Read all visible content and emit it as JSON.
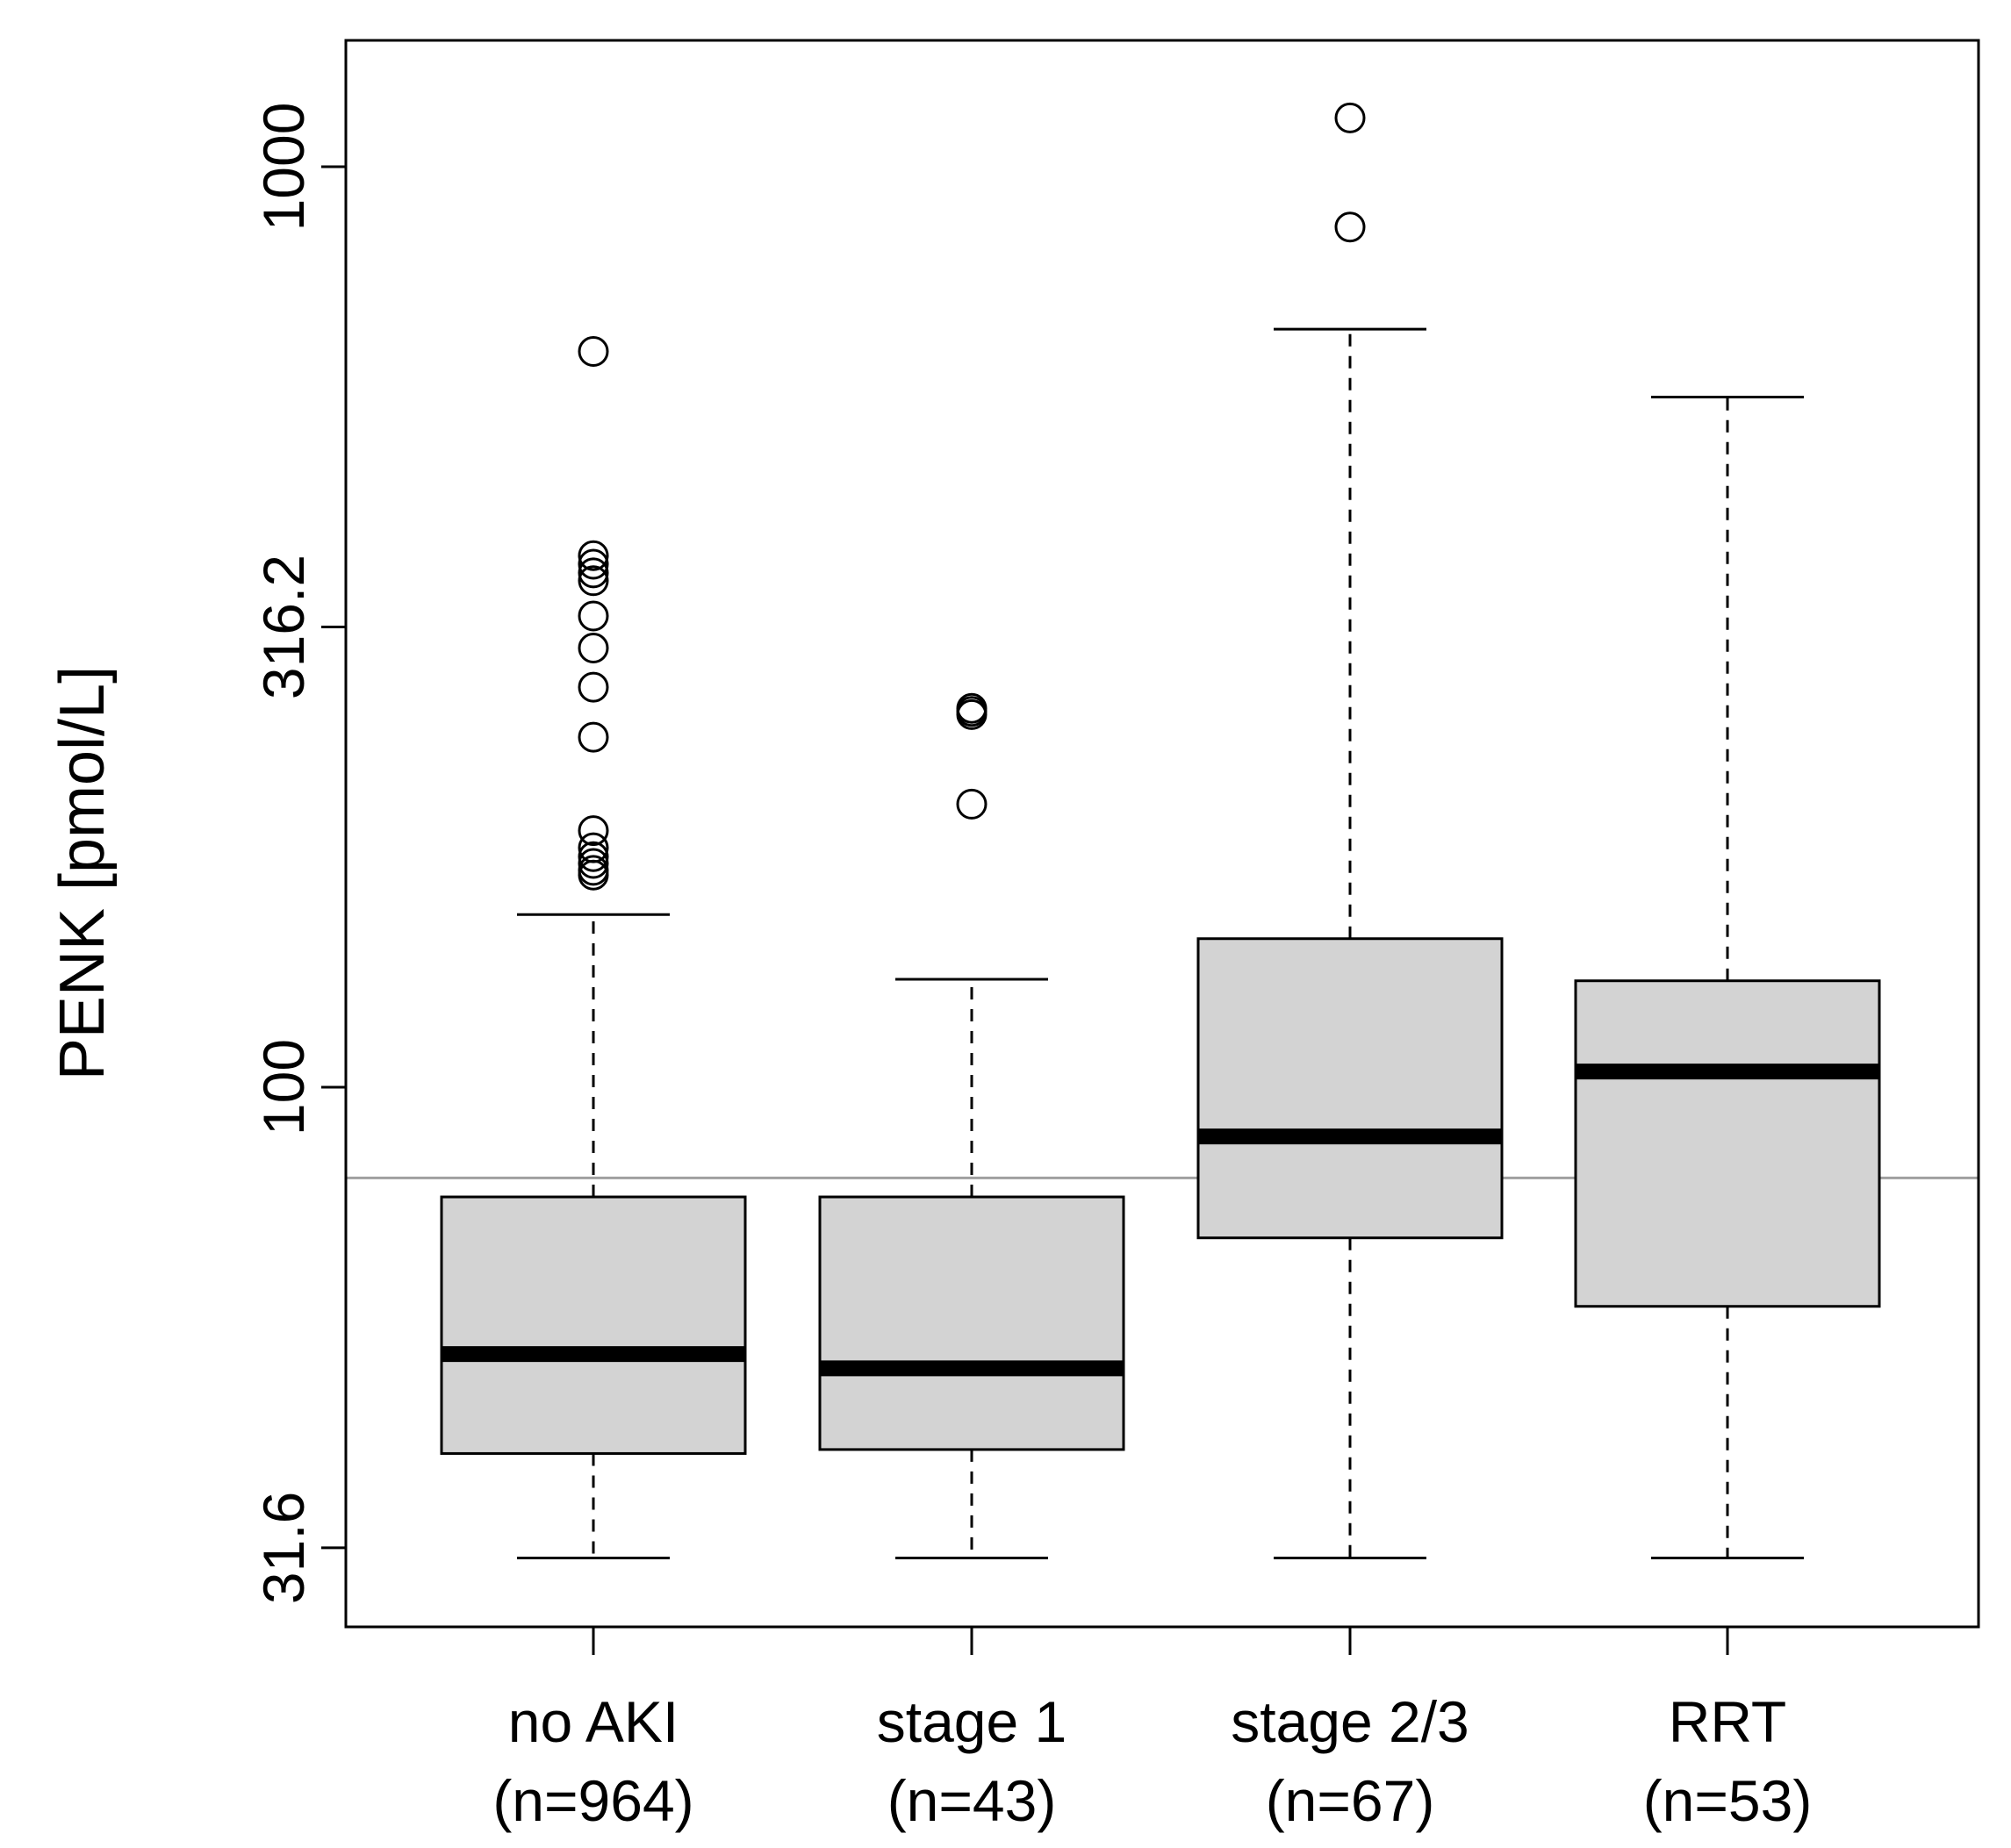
{
  "chart_data": {
    "type": "boxplot",
    "title": "",
    "xlabel": "",
    "ylabel": "PENK [pmol/L]",
    "y_scale": "log10",
    "ylim": [
      28.0,
      1300.0
    ],
    "y_ticks": [
      {
        "value": 31.6,
        "label": "31.6"
      },
      {
        "value": 100,
        "label": "100"
      },
      {
        "value": 316.2,
        "label": "316.2"
      },
      {
        "value": 1000,
        "label": "1000"
      }
    ],
    "reference_line": {
      "value": 79.7,
      "color": "#a0a0a0"
    },
    "colors": {
      "box_fill": "#d3d3d3",
      "stroke": "#000000",
      "background": "#ffffff"
    },
    "groups": [
      {
        "name": "no AKI",
        "n_label": "(n=964)",
        "whisker_low": 30.8,
        "q1": 40.0,
        "median": 51.3,
        "q3": 76.0,
        "whisker_high": 154.0,
        "outliers": [
          170,
          172,
          175,
          178,
          182,
          190,
          240,
          272,
          300,
          325,
          355,
          362,
          370,
          378,
          630
        ]
      },
      {
        "name": "stage 1",
        "n_label": "(n=43)",
        "whisker_low": 30.8,
        "q1": 40.4,
        "median": 49.5,
        "q3": 76.0,
        "whisker_high": 131.0,
        "outliers": [
          203,
          254,
          256,
          258
        ]
      },
      {
        "name": "stage 2/3",
        "n_label": "(n=67)",
        "whisker_low": 30.8,
        "q1": 68.6,
        "median": 88.4,
        "q3": 145.0,
        "whisker_high": 666.0,
        "outliers": [
          860,
          1130
        ]
      },
      {
        "name": "RRT",
        "n_label": "(n=53)",
        "whisker_low": 30.8,
        "q1": 57.8,
        "median": 104.0,
        "q3": 130.5,
        "whisker_high": 562.0,
        "outliers": []
      }
    ]
  }
}
